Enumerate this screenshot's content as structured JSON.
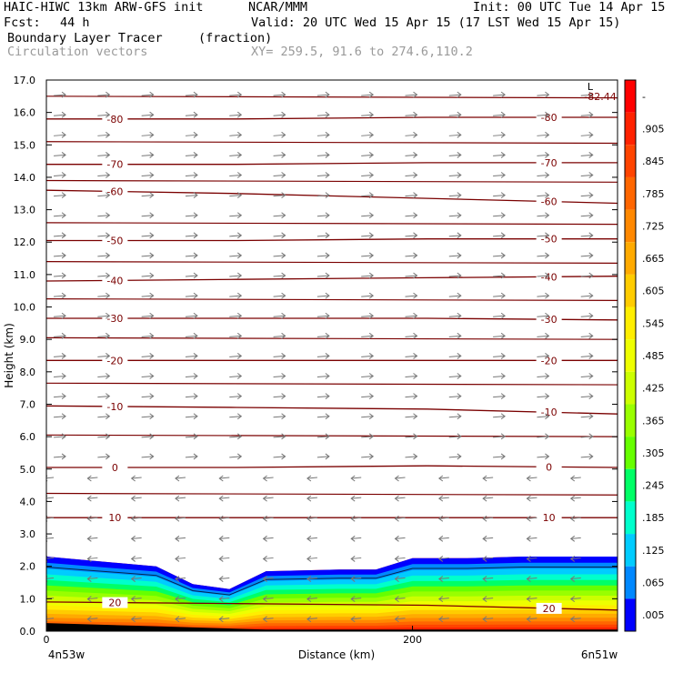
{
  "header": {
    "model": "HAIC-HIWC 13km ARW-GFS init",
    "org": "NCAR/MMM",
    "init": "Init: 00 UTC Tue 14 Apr 15",
    "fcst_label": "Fcst:",
    "fcst_value": "44 h",
    "valid": "Valid: 20 UTC Wed 15 Apr 15 (17 LST Wed 15 Apr 15)",
    "field": "Boundary Layer Tracer",
    "field_units": "(fraction)",
    "vectors": "Circulation vectors",
    "xy": "XY= 259.5, 91.6 to 274.6,110.2"
  },
  "chart_data": {
    "type": "heatmap",
    "title": "Boundary Layer Tracer",
    "xlabel": "Distance (km)",
    "ylabel": "Height (km)",
    "xlim": [
      0,
      312
    ],
    "ylim": [
      0,
      17
    ],
    "x_ticks": [
      0,
      200
    ],
    "x_tick_labels": [
      "0",
      "200"
    ],
    "x_end_labels": [
      "4n53w",
      "6n51w"
    ],
    "y_ticks": [
      "0.0",
      "1.0",
      "2.0",
      "3.0",
      "4.0",
      "5.0",
      "6.0",
      "7.0",
      "8.0",
      "9.0",
      "10.0",
      "11.0",
      "12.0",
      "13.0",
      "14.0",
      "15.0",
      "16.0",
      "17.0"
    ],
    "colorbar_labels": [
      "-",
      ".905",
      ".845",
      ".785",
      ".725",
      ".665",
      ".605",
      ".545",
      ".485",
      ".425",
      ".365",
      ".305",
      ".245",
      ".185",
      ".125",
      ".065",
      ".005"
    ],
    "colors": [
      "#ff0000",
      "#ff2200",
      "#ff4400",
      "#ff6600",
      "#ff8800",
      "#ffaa00",
      "#ffcc00",
      "#ffee00",
      "#eeff00",
      "#ccff00",
      "#99ff00",
      "#66ff00",
      "#00ff66",
      "#00ffcc",
      "#00ccff",
      "#0088ff",
      "#0000ff",
      "#ffffff"
    ],
    "contour_color": "#7a0000",
    "contour_labels": [
      "-80",
      "-70",
      "-60",
      "-50",
      "-40",
      "-30",
      "-20",
      "-10",
      "0",
      "10",
      "20"
    ],
    "contours": [
      {
        "label": "-80",
        "y": [
          15.8,
          15.8,
          15.85,
          15.85
        ]
      },
      {
        "label": "-70",
        "y": [
          14.4,
          14.4,
          14.45,
          14.45
        ]
      },
      {
        "label": "-60",
        "y": [
          13.6,
          13.5,
          13.35,
          13.2
        ]
      },
      {
        "label": "-50",
        "y": [
          12.05,
          12.05,
          12.1,
          12.1
        ]
      },
      {
        "label": "-40",
        "y": [
          10.8,
          10.85,
          10.9,
          10.95
        ]
      },
      {
        "label": "-30",
        "y": [
          9.65,
          9.65,
          9.65,
          9.6
        ]
      },
      {
        "label": "-20",
        "y": [
          8.35,
          8.35,
          8.35,
          8.35
        ]
      },
      {
        "label": "-10",
        "y": [
          6.95,
          6.9,
          6.85,
          6.7
        ]
      },
      {
        "label": "0",
        "y": [
          5.05,
          5.05,
          5.1,
          5.05
        ]
      },
      {
        "label": "10",
        "y": [
          3.5,
          3.5,
          3.5,
          3.5
        ]
      },
      {
        "label": "20",
        "y": [
          0.9,
          0.85,
          0.8,
          0.65
        ]
      }
    ],
    "extra_isotherms_y": [
      16.5,
      15.1,
      13.9,
      12.6,
      11.4,
      10.25,
      9.05,
      7.65,
      6.05,
      4.25
    ],
    "boundary_layer_top_km": [
      2.3,
      2.2,
      2.0,
      1.45,
      1.3,
      1.85,
      1.9,
      1.9,
      2.25,
      2.25,
      2.3,
      2.3,
      2.3
    ],
    "boundary_layer_x_km": [
      0,
      20,
      60,
      80,
      100,
      120,
      160,
      180,
      200,
      230,
      260,
      290,
      312
    ],
    "wind": {
      "upper": "westerly",
      "lower": "easterly",
      "reversal_height_km": 5.0
    },
    "max_label": "L",
    "max_value": "-82.44"
  }
}
